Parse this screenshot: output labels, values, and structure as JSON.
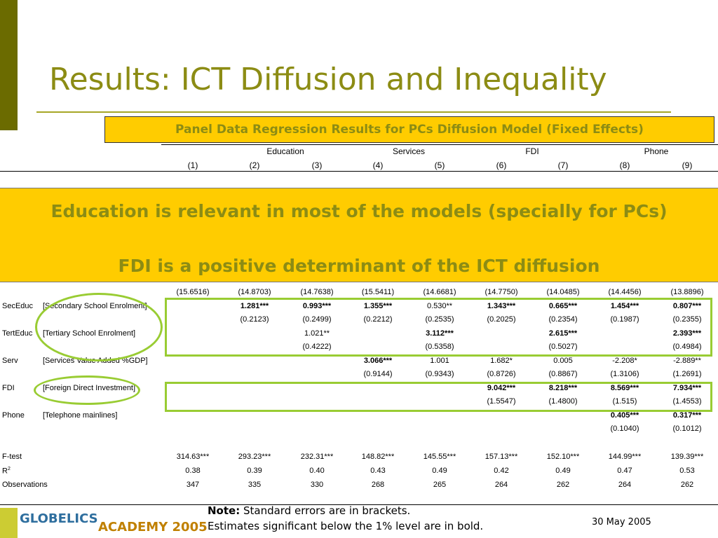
{
  "title": "Results: ICT Diffusion and Inequality",
  "panel_title": "Panel Data Regression Results for PCs Diffusion Model (Fixed Effects)",
  "groups": [
    "Education",
    "Services",
    "FDI",
    "Phone"
  ],
  "columns": [
    "(1)",
    "(2)",
    "(3)",
    "(4)",
    "(5)",
    "(6)",
    "(7)",
    "(8)",
    "(9)"
  ],
  "callout": {
    "line1": "Education is relevant in most of the models (specially for PCs)",
    "line2": "FDI is a positive determinant of the ICT diffusion"
  },
  "constant_se": [
    "(15.6516)",
    "(14.8703)",
    "(14.7638)",
    "(15.5411)",
    "(14.6681)",
    "(14.7750)",
    "(14.0485)",
    "(14.4456)",
    "(13.8896)"
  ],
  "rows": [
    {
      "var": "SecEduc",
      "desc": "[Secondary School Enrolment]",
      "coef": [
        "",
        "1.281***",
        "0.993***",
        "1.355***",
        "0.530**",
        "1.343***",
        "0.665***",
        "1.454***",
        "0.807***"
      ],
      "bold": [
        false,
        true,
        true,
        true,
        false,
        true,
        true,
        true,
        true
      ],
      "se": [
        "",
        "(0.2123)",
        "(0.2499)",
        "(0.2212)",
        "(0.2535)",
        "(0.2025)",
        "(0.2354)",
        "(0.1987)",
        "(0.2355)"
      ]
    },
    {
      "var": "TertEduc",
      "desc": "[Tertiary School Enrolment]",
      "coef": [
        "",
        "",
        "1.021**",
        "",
        "3.112***",
        "",
        "2.615***",
        "",
        "2.393***"
      ],
      "bold": [
        false,
        false,
        false,
        false,
        true,
        false,
        true,
        false,
        true
      ],
      "se": [
        "",
        "",
        "(0.4222)",
        "",
        "(0.5358)",
        "",
        "(0.5027)",
        "",
        "(0.4984)"
      ]
    },
    {
      "var": "Serv",
      "desc": "[Services Value Added %GDP]",
      "coef": [
        "",
        "",
        "",
        "3.066***",
        "1.001",
        "1.682*",
        "0.005",
        "-2.208*",
        "-2.889**"
      ],
      "bold": [
        false,
        false,
        false,
        true,
        false,
        false,
        false,
        false,
        false
      ],
      "se": [
        "",
        "",
        "",
        "(0.9144)",
        "(0.9343)",
        "(0.8726)",
        "(0.8867)",
        "(1.3106)",
        "(1.2691)"
      ]
    },
    {
      "var": "FDI",
      "desc": "[Foreign Direct Investment]",
      "coef": [
        "",
        "",
        "",
        "",
        "",
        "9.042***",
        "8.218***",
        "8.569***",
        "7.934***"
      ],
      "bold": [
        false,
        false,
        false,
        false,
        false,
        true,
        true,
        true,
        true
      ],
      "se": [
        "",
        "",
        "",
        "",
        "",
        "(1.5547)",
        "(1.4800)",
        "(1.515)",
        "(1.4553)"
      ]
    },
    {
      "var": "Phone",
      "desc": "[Telephone mainlines]",
      "coef": [
        "",
        "",
        "",
        "",
        "",
        "",
        "",
        "0.405***",
        "0.317***"
      ],
      "bold": [
        false,
        false,
        false,
        false,
        false,
        false,
        false,
        true,
        true
      ],
      "se": [
        "",
        "",
        "",
        "",
        "",
        "",
        "",
        "(0.1040)",
        "(0.1012)"
      ]
    }
  ],
  "stats": [
    {
      "label": "F-test",
      "values": [
        "314.63***",
        "293.23***",
        "232.31***",
        "148.82***",
        "145.55***",
        "157.13***",
        "152.10***",
        "144.99***",
        "139.39***"
      ]
    },
    {
      "label": "R",
      "sup": "2",
      "values": [
        "0.38",
        "0.39",
        "0.40",
        "0.43",
        "0.49",
        "0.42",
        "0.49",
        "0.47",
        "0.53"
      ]
    },
    {
      "label": "Observations",
      "values": [
        "347",
        "335",
        "330",
        "268",
        "265",
        "264",
        "262",
        "264",
        "262"
      ]
    }
  ],
  "note": {
    "label": "Note:",
    "line1": "Standard errors are in brackets.",
    "line2": "Estimates significant below the 1% level are in bold."
  },
  "footer": {
    "logo_top": "GLOBELICS",
    "logo_bottom": "ACADEMY 2005",
    "date": "30 May 2005"
  },
  "colors": {
    "title": "#8c8c14",
    "highlight": "#ffcc00",
    "annotation": "#99cc33",
    "sidebar": "#6b6b00"
  }
}
